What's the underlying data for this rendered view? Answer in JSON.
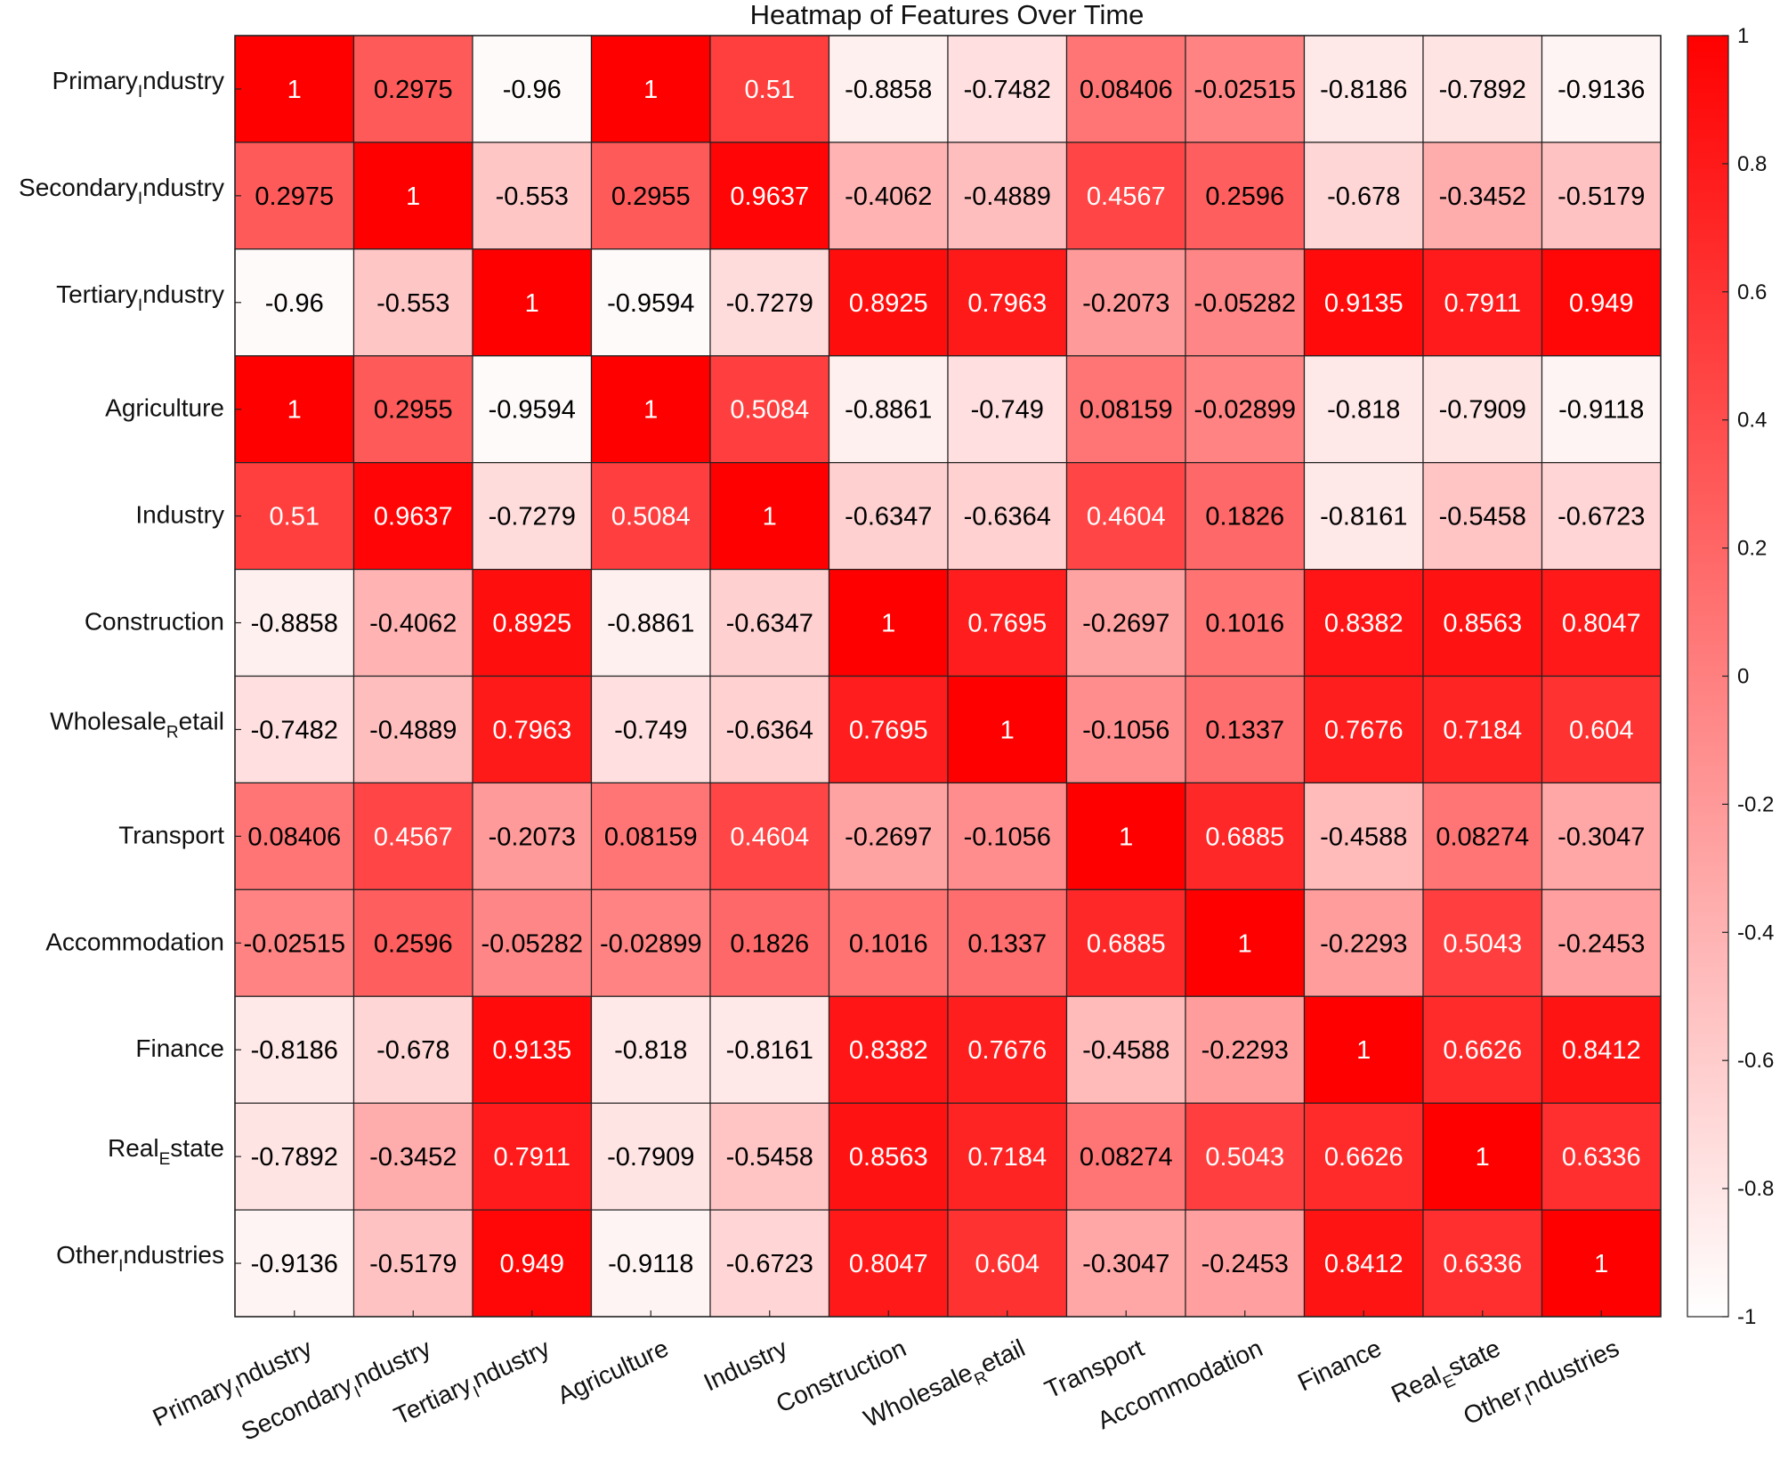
{
  "chart_data": {
    "type": "heatmap",
    "title": "Heatmap of Features Over Time",
    "labels": [
      {
        "base": "Primary",
        "sub": "I",
        "rest": "ndustry"
      },
      {
        "base": "Secondary",
        "sub": "I",
        "rest": "ndustry"
      },
      {
        "base": "Tertiary",
        "sub": "I",
        "rest": "ndustry"
      },
      {
        "base": "Agriculture",
        "sub": "",
        "rest": ""
      },
      {
        "base": "Industry",
        "sub": "",
        "rest": ""
      },
      {
        "base": "Construction",
        "sub": "",
        "rest": ""
      },
      {
        "base": "Wholesale",
        "sub": "R",
        "rest": "etail"
      },
      {
        "base": "Transport",
        "sub": "",
        "rest": ""
      },
      {
        "base": "Accommodation",
        "sub": "",
        "rest": ""
      },
      {
        "base": "Finance",
        "sub": "",
        "rest": ""
      },
      {
        "base": "Real",
        "sub": "E",
        "rest": "state"
      },
      {
        "base": "Other",
        "sub": "I",
        "rest": "ndustries"
      }
    ],
    "values": [
      [
        "1",
        "0.2975",
        "-0.96",
        "1",
        "0.51",
        "-0.8858",
        "-0.7482",
        "0.08406",
        "-0.02515",
        "-0.8186",
        "-0.7892",
        "-0.9136"
      ],
      [
        "0.2975",
        "1",
        "-0.553",
        "0.2955",
        "0.9637",
        "-0.4062",
        "-0.4889",
        "0.4567",
        "0.2596",
        "-0.678",
        "-0.3452",
        "-0.5179"
      ],
      [
        "-0.96",
        "-0.553",
        "1",
        "-0.9594",
        "-0.7279",
        "0.8925",
        "0.7963",
        "-0.2073",
        "-0.05282",
        "0.9135",
        "0.7911",
        "0.949"
      ],
      [
        "1",
        "0.2955",
        "-0.9594",
        "1",
        "0.5084",
        "-0.8861",
        "-0.749",
        "0.08159",
        "-0.02899",
        "-0.818",
        "-0.7909",
        "-0.9118"
      ],
      [
        "0.51",
        "0.9637",
        "-0.7279",
        "0.5084",
        "1",
        "-0.6347",
        "-0.6364",
        "0.4604",
        "0.1826",
        "-0.8161",
        "-0.5458",
        "-0.6723"
      ],
      [
        "-0.8858",
        "-0.4062",
        "0.8925",
        "-0.8861",
        "-0.6347",
        "1",
        "0.7695",
        "-0.2697",
        "0.1016",
        "0.8382",
        "0.8563",
        "0.8047"
      ],
      [
        "-0.7482",
        "-0.4889",
        "0.7963",
        "-0.749",
        "-0.6364",
        "0.7695",
        "1",
        "-0.1056",
        "0.1337",
        "0.7676",
        "0.7184",
        "0.604"
      ],
      [
        "0.08406",
        "0.4567",
        "-0.2073",
        "0.08159",
        "0.4604",
        "-0.2697",
        "-0.1056",
        "1",
        "0.6885",
        "-0.4588",
        "0.08274",
        "-0.3047"
      ],
      [
        "-0.02515",
        "0.2596",
        "-0.05282",
        "-0.02899",
        "0.1826",
        "0.1016",
        "0.1337",
        "0.6885",
        "1",
        "-0.2293",
        "0.5043",
        "-0.2453"
      ],
      [
        "-0.8186",
        "-0.678",
        "0.9135",
        "-0.818",
        "-0.8161",
        "0.8382",
        "0.7676",
        "-0.4588",
        "-0.2293",
        "1",
        "0.6626",
        "0.8412"
      ],
      [
        "-0.7892",
        "-0.3452",
        "0.7911",
        "-0.7909",
        "-0.5458",
        "0.8563",
        "0.7184",
        "0.08274",
        "0.5043",
        "0.6626",
        "1",
        "0.6336"
      ],
      [
        "-0.9136",
        "-0.5179",
        "0.949",
        "-0.9118",
        "-0.6723",
        "0.8047",
        "0.604",
        "-0.3047",
        "-0.2453",
        "0.8412",
        "0.6336",
        "1"
      ]
    ],
    "color_range": [
      -1,
      1
    ],
    "colormap": {
      "low": "#ffffff",
      "high": "#ff0000"
    },
    "colorbar_ticks": [
      "1",
      "0.8",
      "0.6",
      "0.4",
      "0.2",
      "0",
      "-0.2",
      "-0.4",
      "-0.6",
      "-0.8",
      "-1"
    ],
    "colorbar_tick_values": [
      1,
      0.8,
      0.6,
      0.4,
      0.2,
      0,
      -0.2,
      -0.4,
      -0.6,
      -0.8,
      -1
    ]
  }
}
